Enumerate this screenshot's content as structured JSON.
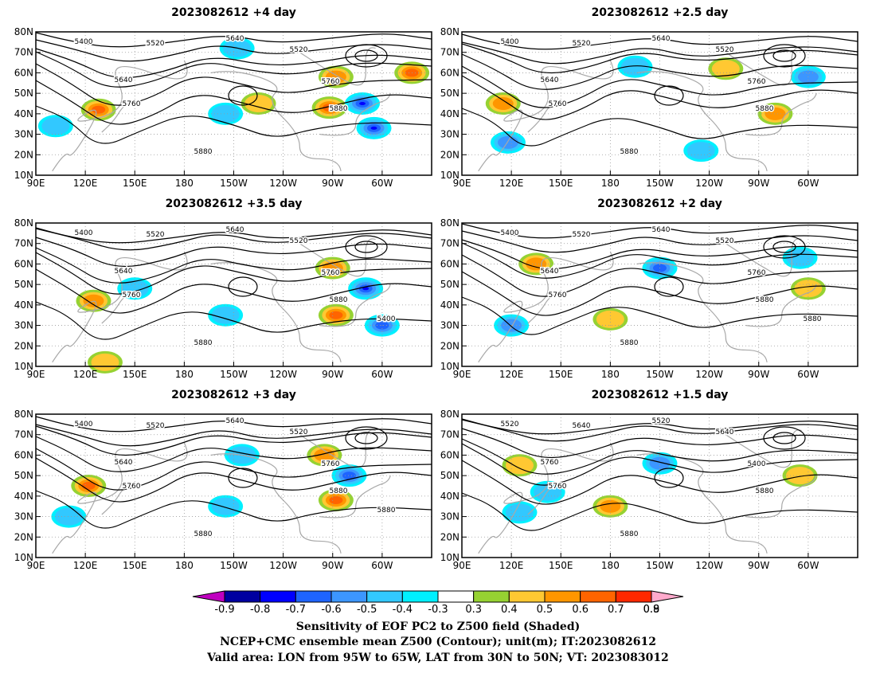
{
  "chart_data": {
    "type": "contour_map_panels",
    "panels": [
      {
        "title": "2023082612  +4 day",
        "contour_labels": [
          "5400",
          "5520",
          "5640",
          "5520",
          "5640",
          "5760",
          "5760",
          "5880",
          "5880"
        ],
        "positive_regions": [
          {
            "lon": 128,
            "lat": 42,
            "max": 0.6
          },
          {
            "lon": 268,
            "lat": 43,
            "max": 0.6
          },
          {
            "lon": 272,
            "lat": 58,
            "max": 0.5
          },
          {
            "lon": 318,
            "lat": 60,
            "max": 0.6
          },
          {
            "lon": 225,
            "lat": 45,
            "max": 0.4
          }
        ],
        "negative_regions": [
          {
            "lon": 288,
            "lat": 45,
            "min": -0.8
          },
          {
            "lon": 295,
            "lat": 33,
            "min": -0.7
          },
          {
            "lon": 205,
            "lat": 40,
            "min": -0.4
          },
          {
            "lon": 212,
            "lat": 72,
            "min": -0.4
          },
          {
            "lon": 102,
            "lat": 34,
            "min": -0.4
          }
        ]
      },
      {
        "title": "2023082612  +2.5 day",
        "contour_labels": [
          "5400",
          "5520",
          "5640",
          "5520",
          "5640",
          "5760",
          "5760",
          "5880",
          "5880"
        ],
        "positive_regions": [
          {
            "lon": 115,
            "lat": 45,
            "max": 0.5
          },
          {
            "lon": 280,
            "lat": 40,
            "max": 0.5
          },
          {
            "lon": 250,
            "lat": 62,
            "max": 0.4
          }
        ],
        "negative_regions": [
          {
            "lon": 118,
            "lat": 26,
            "min": -0.5
          },
          {
            "lon": 195,
            "lat": 63,
            "min": -0.4
          },
          {
            "lon": 300,
            "lat": 58,
            "min": -0.5
          },
          {
            "lon": 235,
            "lat": 22,
            "min": -0.4
          }
        ]
      },
      {
        "title": "2023082612  +3.5 day",
        "contour_labels": [
          "5400",
          "5520",
          "5640",
          "5520",
          "5640",
          "5760",
          "5760",
          "5880",
          "5880",
          "5400"
        ],
        "positive_regions": [
          {
            "lon": 125,
            "lat": 42,
            "max": 0.5
          },
          {
            "lon": 272,
            "lat": 35,
            "max": 0.6
          },
          {
            "lon": 270,
            "lat": 58,
            "max": 0.5
          },
          {
            "lon": 132,
            "lat": 12,
            "max": 0.4
          }
        ],
        "negative_regions": [
          {
            "lon": 290,
            "lat": 48,
            "min": -0.8
          },
          {
            "lon": 300,
            "lat": 30,
            "min": -0.6
          },
          {
            "lon": 150,
            "lat": 48,
            "min": -0.4
          },
          {
            "lon": 205,
            "lat": 35,
            "min": -0.4
          }
        ]
      },
      {
        "title": "2023082612  +2 day",
        "contour_labels": [
          "5400",
          "5520",
          "5640",
          "5520",
          "5640",
          "5760",
          "5760",
          "5880",
          "5880",
          "5880"
        ],
        "positive_regions": [
          {
            "lon": 135,
            "lat": 60,
            "max": 0.5
          },
          {
            "lon": 180,
            "lat": 33,
            "max": 0.4
          },
          {
            "lon": 300,
            "lat": 48,
            "max": 0.4
          }
        ],
        "negative_regions": [
          {
            "lon": 120,
            "lat": 30,
            "min": -0.5
          },
          {
            "lon": 210,
            "lat": 58,
            "min": -0.6
          },
          {
            "lon": 295,
            "lat": 63,
            "min": -0.4
          }
        ]
      },
      {
        "title": "2023082612  +3 day",
        "contour_labels": [
          "5400",
          "5520",
          "5640",
          "5520",
          "5640",
          "5760",
          "5760",
          "5880",
          "5880",
          "5880"
        ],
        "positive_regions": [
          {
            "lon": 122,
            "lat": 45,
            "max": 0.6
          },
          {
            "lon": 272,
            "lat": 38,
            "max": 0.6
          },
          {
            "lon": 265,
            "lat": 60,
            "max": 0.5
          }
        ],
        "negative_regions": [
          {
            "lon": 215,
            "lat": 60,
            "min": -0.4
          },
          {
            "lon": 280,
            "lat": 50,
            "min": -0.6
          },
          {
            "lon": 205,
            "lat": 35,
            "min": -0.4
          },
          {
            "lon": 110,
            "lat": 30,
            "min": -0.4
          }
        ]
      },
      {
        "title": "2023082612  +1.5 day",
        "contour_labels": [
          "5520",
          "5640",
          "5520",
          "5640",
          "5760",
          "5400",
          "5760",
          "5880",
          "5880"
        ],
        "positive_regions": [
          {
            "lon": 125,
            "lat": 55,
            "max": 0.4
          },
          {
            "lon": 180,
            "lat": 35,
            "max": 0.5
          },
          {
            "lon": 295,
            "lat": 50,
            "max": 0.4
          }
        ],
        "negative_regions": [
          {
            "lon": 125,
            "lat": 32,
            "min": -0.4
          },
          {
            "lon": 210,
            "lat": 56,
            "min": -0.5
          },
          {
            "lon": 142,
            "lat": 42,
            "min": -0.4
          }
        ]
      }
    ],
    "x_ticks": [
      "90E",
      "120E",
      "150E",
      "180",
      "150W",
      "120W",
      "90W",
      "60W"
    ],
    "x_tick_lons": [
      90,
      120,
      150,
      180,
      210,
      240,
      270,
      300
    ],
    "y_ticks": [
      "10N",
      "20N",
      "30N",
      "40N",
      "50N",
      "60N",
      "70N",
      "80N"
    ],
    "y_tick_lats": [
      10,
      20,
      30,
      40,
      50,
      60,
      70,
      80
    ],
    "xlim_lon": [
      90,
      330
    ],
    "ylim_lat": [
      10,
      80
    ],
    "colorbar": {
      "tick_labels": [
        "-0.9",
        "-0.8",
        "-0.7",
        "-0.6",
        "-0.5",
        "-0.4",
        "-0.3",
        "0.3",
        "0.4",
        "0.5",
        "0.6",
        "0.7",
        "0.8",
        "0.9"
      ],
      "colors": [
        "#c000c0",
        "#0000a0",
        "#0000ff",
        "#1e64ff",
        "#3c96ff",
        "#32c8ff",
        "#00f0ff",
        "#ffffff",
        "#96d232",
        "#ffc832",
        "#ff9600",
        "#ff6400",
        "#ff2800",
        "#ffaacc"
      ]
    },
    "caption": [
      "Sensitivity of EOF PC2 to Z500 field (Shaded)",
      "NCEP+CMC ensemble mean Z500 (Contour); unit(m); IT:2023082612",
      "Valid area: LON from 95W to 65W, LAT from 30N to 50N; VT: 2023083012"
    ]
  }
}
